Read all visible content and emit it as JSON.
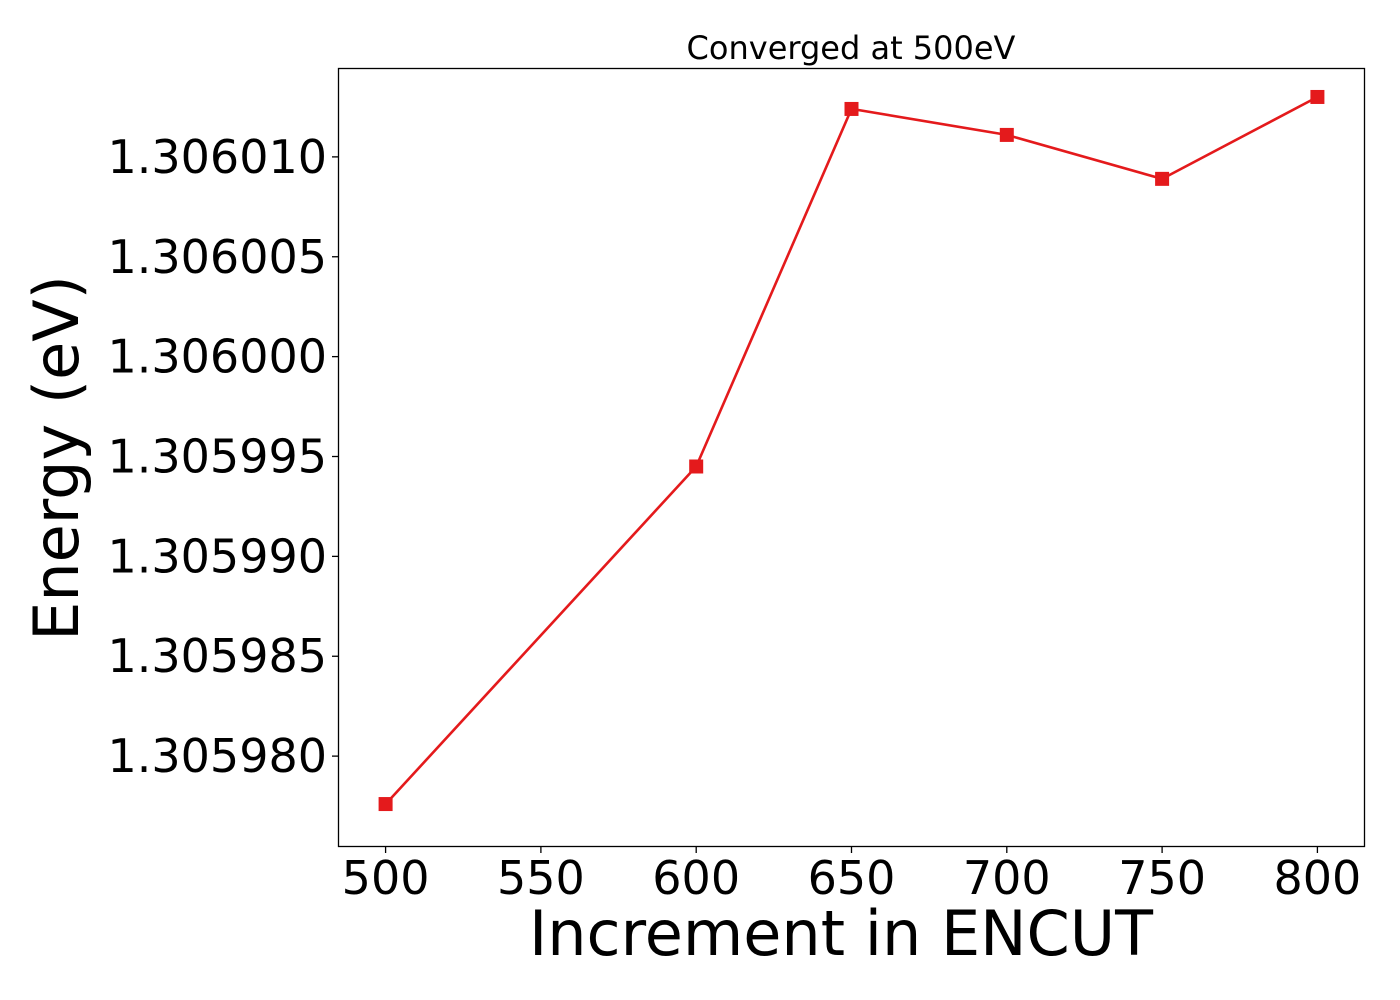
{
  "chart_data": {
    "type": "line",
    "title": "Converged at 500eV",
    "xlabel": "Increment in ENCUT",
    "ylabel": "Energy (eV)",
    "x": [
      500,
      600,
      650,
      700,
      750,
      800
    ],
    "series": [
      {
        "values": [
          1.3059776,
          1.3059945,
          1.3060124,
          1.3060111,
          1.3060089,
          1.306013
        ],
        "color": "#e41a1c",
        "marker": "square"
      }
    ],
    "xticks": [
      500,
      550,
      600,
      650,
      700,
      750,
      800
    ],
    "xtick_labels": [
      "500",
      "550",
      "600",
      "650",
      "700",
      "750",
      "800"
    ],
    "yticks": [
      1.30598,
      1.305985,
      1.30599,
      1.305995,
      1.306,
      1.306005,
      1.30601
    ],
    "ytick_labels": [
      "1.305980",
      "1.305985",
      "1.305990",
      "1.305995",
      "1.306000",
      "1.306005",
      "1.306010"
    ],
    "xlim": [
      485,
      815
    ],
    "ylim": [
      1.3059755,
      1.3060144
    ],
    "grid": false,
    "legend": "none"
  }
}
